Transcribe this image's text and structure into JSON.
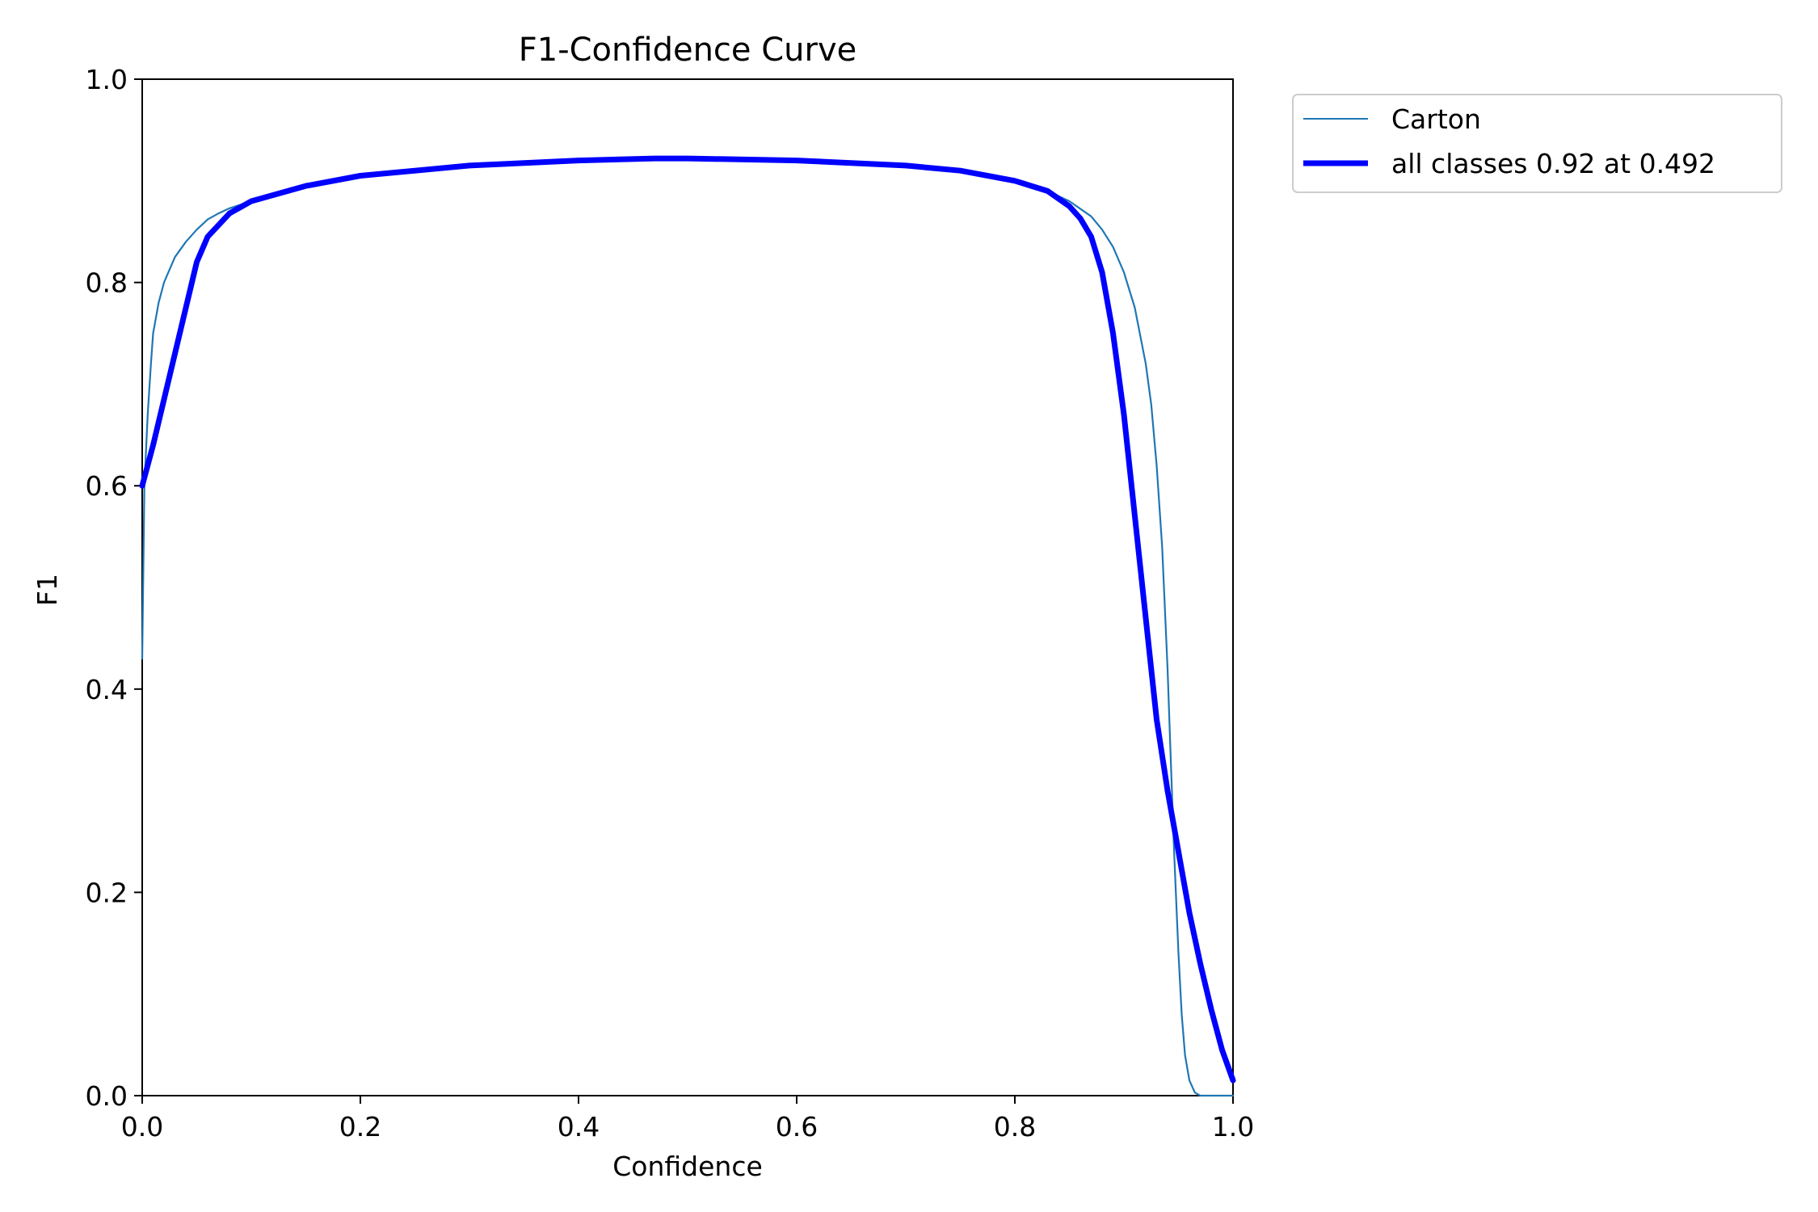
{
  "chart_data": {
    "type": "line",
    "title": "F1-Confidence Curve",
    "xlabel": "Confidence",
    "ylabel": "F1",
    "xlim": [
      0,
      1
    ],
    "ylim": [
      0,
      1
    ],
    "xticks": [
      "0.0",
      "0.2",
      "0.4",
      "0.6",
      "0.8",
      "1.0"
    ],
    "yticks": [
      "0.0",
      "0.2",
      "0.4",
      "0.6",
      "0.8",
      "1.0"
    ],
    "grid": false,
    "legend_position": "outside-top-right",
    "series": [
      {
        "name": "Carton",
        "color": "#1f77b4",
        "style": "thin",
        "x": [
          0.0,
          0.002,
          0.005,
          0.008,
          0.01,
          0.015,
          0.02,
          0.03,
          0.04,
          0.05,
          0.06,
          0.07,
          0.08,
          0.1,
          0.15,
          0.2,
          0.3,
          0.4,
          0.47,
          0.5,
          0.6,
          0.7,
          0.75,
          0.8,
          0.83,
          0.85,
          0.87,
          0.88,
          0.89,
          0.9,
          0.91,
          0.92,
          0.925,
          0.93,
          0.935,
          0.94,
          0.943,
          0.946,
          0.95,
          0.953,
          0.956,
          0.96,
          0.965,
          0.97,
          0.975,
          0.98,
          1.0
        ],
        "y": [
          0.43,
          0.6,
          0.67,
          0.72,
          0.75,
          0.78,
          0.8,
          0.825,
          0.84,
          0.852,
          0.862,
          0.868,
          0.873,
          0.88,
          0.895,
          0.905,
          0.915,
          0.92,
          0.922,
          0.922,
          0.92,
          0.915,
          0.91,
          0.9,
          0.89,
          0.88,
          0.865,
          0.852,
          0.835,
          0.81,
          0.775,
          0.72,
          0.68,
          0.62,
          0.54,
          0.42,
          0.33,
          0.24,
          0.14,
          0.08,
          0.04,
          0.015,
          0.003,
          0.0,
          0.0,
          0.0,
          0.0
        ]
      },
      {
        "name": "all classes 0.92 at 0.492",
        "color": "#0000ff",
        "style": "thick",
        "x": [
          0.0,
          0.01,
          0.03,
          0.05,
          0.06,
          0.08,
          0.1,
          0.15,
          0.2,
          0.3,
          0.4,
          0.47,
          0.5,
          0.6,
          0.7,
          0.75,
          0.8,
          0.83,
          0.85,
          0.86,
          0.87,
          0.88,
          0.89,
          0.9,
          0.91,
          0.92,
          0.93,
          0.94,
          0.95,
          0.96,
          0.97,
          0.98,
          0.99,
          1.0
        ],
        "y": [
          0.6,
          0.64,
          0.73,
          0.82,
          0.845,
          0.868,
          0.88,
          0.895,
          0.905,
          0.915,
          0.92,
          0.922,
          0.922,
          0.92,
          0.915,
          0.91,
          0.9,
          0.89,
          0.875,
          0.863,
          0.845,
          0.81,
          0.75,
          0.67,
          0.57,
          0.47,
          0.37,
          0.3,
          0.24,
          0.18,
          0.13,
          0.085,
          0.045,
          0.015
        ]
      }
    ]
  }
}
